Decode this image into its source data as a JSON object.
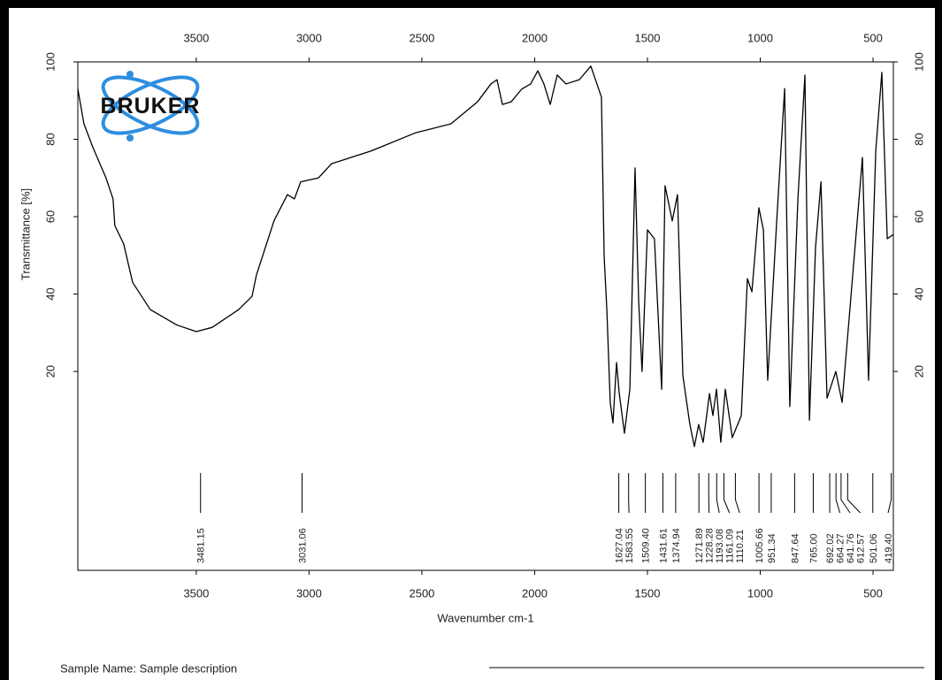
{
  "chart_data": {
    "type": "line",
    "xlabel": "Wavenumber cm-1",
    "ylabel": "Transmittance [%]",
    "xlim": [
      4025,
      410
    ],
    "ylim": [
      -31.4,
      100
    ],
    "xticks": [
      3500,
      3000,
      2500,
      2000,
      1500,
      1000,
      500
    ],
    "yticks": [
      20,
      40,
      60,
      80,
      100
    ],
    "x": [
      4025,
      3998,
      3959,
      3900,
      3869,
      3861,
      3822,
      3782,
      3704,
      3586,
      3500,
      3429,
      3312,
      3253,
      3233,
      3155,
      3096,
      3065,
      3037,
      2959,
      2900,
      2724,
      2527,
      2371,
      2253,
      2194,
      2167,
      2143,
      2104,
      2057,
      2018,
      1986,
      1959,
      1931,
      1900,
      1861,
      1802,
      1751,
      1724,
      1704,
      1692,
      1680,
      1665,
      1653,
      1637,
      1625,
      1602,
      1578,
      1555,
      1539,
      1524,
      1500,
      1469,
      1437,
      1422,
      1390,
      1367,
      1343,
      1312,
      1292,
      1273,
      1253,
      1225,
      1210,
      1194,
      1175,
      1155,
      1124,
      1084,
      1057,
      1037,
      1006,
      986,
      967,
      927,
      892,
      869,
      833,
      802,
      782,
      755,
      731,
      704,
      665,
      637,
      606,
      547,
      520,
      488,
      461,
      437,
      410
    ],
    "series": [
      {
        "color": "#000000",
        "values": [
          93,
          84,
          78,
          70,
          64.6,
          57.7,
          53,
          43,
          36,
          32,
          30.3,
          31.4,
          36,
          39.4,
          45,
          59,
          65.7,
          64.6,
          69,
          70,
          73.7,
          77,
          81.7,
          84,
          89.7,
          94.3,
          95.4,
          89,
          89.7,
          93,
          94.3,
          97.7,
          94.3,
          89,
          96.6,
          94.3,
          95.4,
          98.9,
          94.3,
          90.9,
          49.7,
          36,
          12,
          6.7,
          22.3,
          14.3,
          4,
          15.4,
          72.6,
          38.3,
          20,
          56.6,
          54.3,
          15.4,
          68,
          58.9,
          65.7,
          18.9,
          6.3,
          0.6,
          6.3,
          1.7,
          14.3,
          8.6,
          15.4,
          1.7,
          15.4,
          2.9,
          8.6,
          44,
          40.6,
          62.3,
          56.6,
          17.7,
          58.9,
          93.1,
          10.9,
          64.6,
          96.6,
          7.4,
          52,
          69,
          13.1,
          20,
          12,
          33.7,
          75.3,
          17.7,
          77,
          97.3,
          54.3,
          55.4
        ]
      }
    ],
    "peaks": [
      {
        "value": 3481.15,
        "label": "3481.15"
      },
      {
        "value": 3031.06,
        "label": "3031.06"
      },
      {
        "value": 1627.04,
        "label": "1627.04"
      },
      {
        "value": 1583.55,
        "label": "1583.55"
      },
      {
        "value": 1509.4,
        "label": "1509.40"
      },
      {
        "value": 1431.61,
        "label": "1431.61"
      },
      {
        "value": 1374.94,
        "label": "1374.94"
      },
      {
        "value": 1271.89,
        "label": "1271.89"
      },
      {
        "value": 1228.28,
        "label": "1228.28"
      },
      {
        "value": 1193.08,
        "label": "1193.08"
      },
      {
        "value": 1161.09,
        "label": "1161.09"
      },
      {
        "value": 1110.21,
        "label": "1110.21"
      },
      {
        "value": 1005.66,
        "label": "1005.66"
      },
      {
        "value": 951.34,
        "label": "951.34"
      },
      {
        "value": 847.64,
        "label": "847.64"
      },
      {
        "value": 765,
        "label": "765.00"
      },
      {
        "value": 692.02,
        "label": "692.02"
      },
      {
        "value": 664.27,
        "label": "664.27"
      },
      {
        "value": 641.76,
        "label": "641.76"
      },
      {
        "value": 612.57,
        "label": "612.57"
      },
      {
        "value": 501.06,
        "label": "501.06"
      },
      {
        "value": 419.4,
        "label": "419.40"
      }
    ]
  },
  "logo": "BRUKER",
  "sample_name": "Sample Name: Sample description"
}
